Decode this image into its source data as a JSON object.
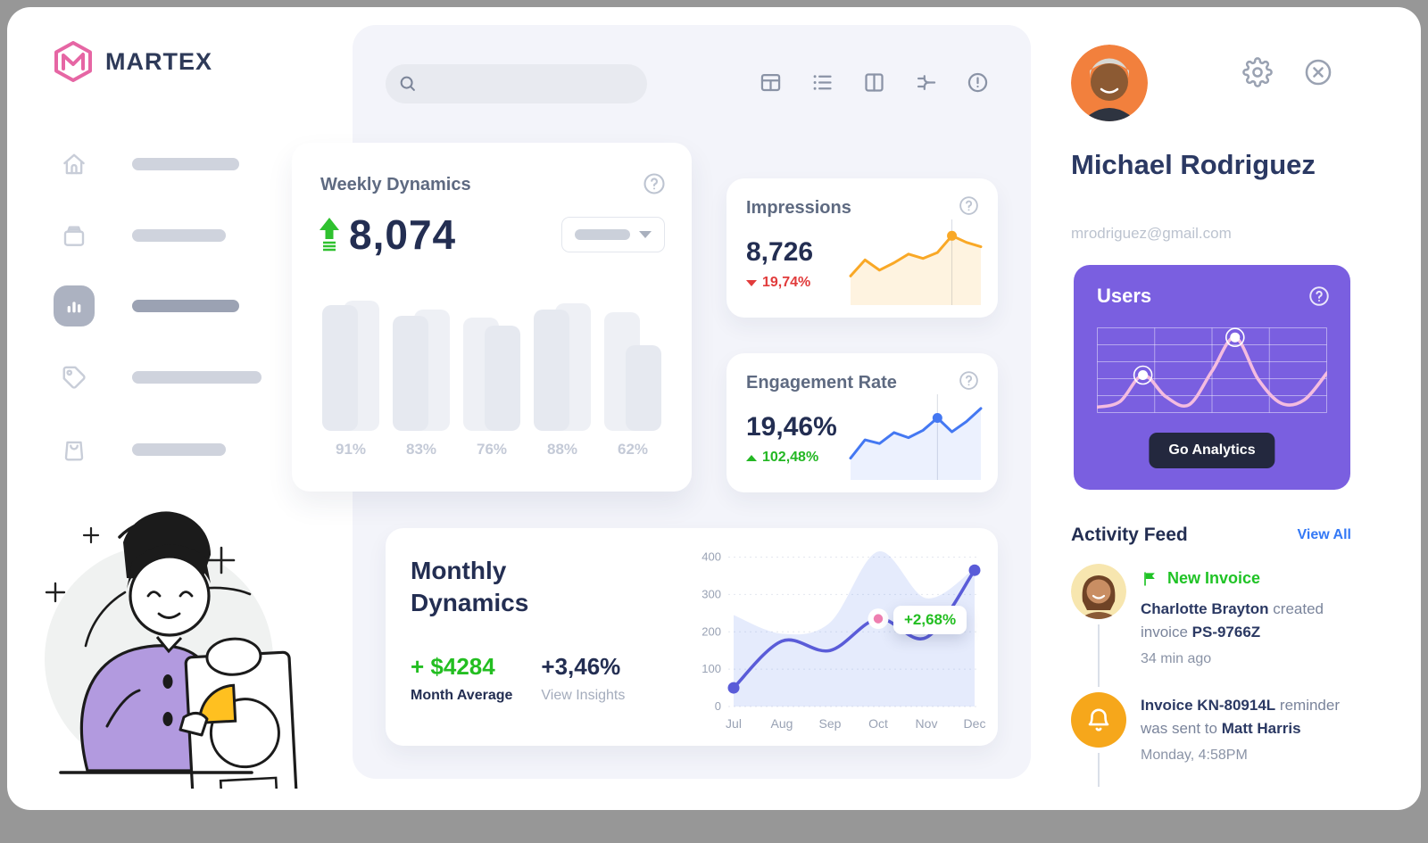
{
  "brand": {
    "name": "MARTEX"
  },
  "topbar": {
    "search_placeholder": ""
  },
  "colors": {
    "accent_purple": "#7A5FE0",
    "navy": "#232E52",
    "green": "#23BE21",
    "red": "#E13B3B",
    "orange": "#F9A826",
    "blue": "#4478F2",
    "indigo": "#5A5CD8",
    "pink": "#F2B8DC",
    "link_blue": "#3479F6",
    "bell_orange": "#F6A71B",
    "button_dark": "#23283E"
  },
  "weekly": {
    "title": "Weekly Dynamics",
    "value": "8,074"
  },
  "impressions": {
    "title": "Impressions",
    "value": "8,726",
    "delta": "19,74%"
  },
  "engagement": {
    "title": "Engagement Rate",
    "value": "19,46%",
    "delta": "102,48%"
  },
  "monthly": {
    "title": "Monthly Dynamics",
    "avg_value": "+ $4284",
    "avg_label": "Month Average",
    "insight_value": "+3,46%",
    "insight_label": "View Insights",
    "tooltip": "+2,68%"
  },
  "profile": {
    "name": "Michael Rodriguez",
    "email": "mrodriguez@gmail.com"
  },
  "users_card": {
    "title": "Users",
    "button": "Go Analytics"
  },
  "activity": {
    "title": "Activity Feed",
    "view_all": "View All",
    "items": [
      {
        "badge": "New Invoice",
        "seg1": "Charlotte Brayton",
        "seg2": " created invoice ",
        "seg3": "PS-9766Z",
        "time": "34  min ago"
      },
      {
        "seg1": "Invoice KN-80914L",
        "seg2": " reminder was sent to ",
        "seg3": "Matt Harris",
        "time": "Monday, 4:58PM"
      }
    ]
  },
  "icons": [
    "search-icon",
    "table-icon",
    "list-icon",
    "columns-icon",
    "flow-icon",
    "alert-icon",
    "help-icon",
    "gear-icon",
    "close-icon",
    "home-icon",
    "archive-icon",
    "chart-icon",
    "tag-icon",
    "bag-icon",
    "flag-icon",
    "bell-icon",
    "chevron-down-icon",
    "arrow-up-icon"
  ],
  "chart_data": [
    {
      "id": "weekly_bars",
      "type": "bar",
      "categories": [
        "1",
        "2",
        "3",
        "4",
        "5"
      ],
      "labels": [
        "91%",
        "83%",
        "76%",
        "88%",
        "62%"
      ],
      "values": [
        91,
        83,
        76,
        88,
        62
      ],
      "secondary_values": [
        94,
        88,
        82,
        92,
        86
      ],
      "flip": [
        false,
        false,
        true,
        false,
        true
      ],
      "title": "Weekly Dynamics",
      "ylim": [
        0,
        100
      ]
    },
    {
      "id": "impressions_spark",
      "type": "area",
      "values": [
        30,
        52,
        38,
        48,
        60,
        54,
        62,
        85,
        76,
        70
      ],
      "highlight_index": 7,
      "color": "#F9A826",
      "fill": "rgba(249,168,38,0.14)"
    },
    {
      "id": "engagement_spark",
      "type": "area",
      "values": [
        20,
        45,
        40,
        55,
        48,
        58,
        75,
        56,
        70,
        88
      ],
      "highlight_index": 6,
      "color": "#4478F2",
      "fill": "rgba(68,120,242,0.10)"
    },
    {
      "id": "monthly",
      "type": "line",
      "x": [
        "Jul",
        "Aug",
        "Sep",
        "Oct",
        "Nov",
        "Dec"
      ],
      "yticks": [
        400,
        300,
        200,
        100,
        0
      ],
      "ylim": [
        0,
        430
      ],
      "series": [
        {
          "name": "value",
          "values": [
            50,
            175,
            150,
            235,
            185,
            365
          ]
        },
        {
          "name": "background_area",
          "values": [
            245,
            195,
            225,
            415,
            290,
            370
          ]
        }
      ],
      "tooltip": {
        "index": 3,
        "label": "+2,68%"
      },
      "end_dot_indices": [
        0,
        5
      ],
      "grid": "dotted-horizontal",
      "legend": "none"
    },
    {
      "id": "users_wave",
      "type": "line",
      "values": [
        5,
        12,
        45,
        18,
        8,
        50,
        92,
        40,
        10,
        14,
        48
      ],
      "dot_indices": [
        2,
        6
      ],
      "color": "#F4BCE0",
      "grid": "white-lattice"
    }
  ]
}
